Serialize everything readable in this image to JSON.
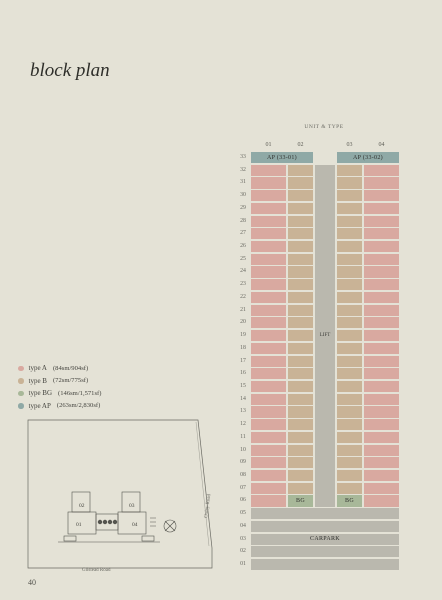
{
  "title": "block plan",
  "page_number": "40",
  "legend": [
    {
      "name": "type A",
      "area": "(84sm/904sf)",
      "color": "#d9a9a0"
    },
    {
      "name": "type B",
      "area": "(72sm/775sf)",
      "color": "#c9b396"
    },
    {
      "name": "type BG",
      "area": "(146sm/1,571sf)",
      "color": "#a8b899"
    },
    {
      "name": "type AP",
      "area": "(263sm/2,830sf)",
      "color": "#8fa9a6"
    }
  ],
  "site_plan": {
    "road_east": "Oxley Road",
    "road_south": "Gilstead Road",
    "units": [
      "01",
      "02",
      "03",
      "04"
    ]
  },
  "chart_data": {
    "type": "table",
    "title": "UNIT & TYPE",
    "columns": [
      "01",
      "02",
      "03",
      "04"
    ],
    "floors": [
      "33",
      "32",
      "31",
      "30",
      "29",
      "28",
      "27",
      "26",
      "25",
      "24",
      "23",
      "22",
      "21",
      "20",
      "19",
      "18",
      "17",
      "16",
      "15",
      "14",
      "13",
      "12",
      "11",
      "10",
      "09",
      "08",
      "07",
      "06",
      "05",
      "04",
      "03",
      "02",
      "01"
    ],
    "penthouse": {
      "floor": "33",
      "cells": [
        "AP (33-01)",
        "AP (33-02)"
      ]
    },
    "typical": {
      "from": "32",
      "to": "07",
      "types": [
        "A",
        "B",
        "B",
        "A"
      ]
    },
    "floor_06": {
      "types": [
        "A",
        "BG",
        "BG",
        "A"
      ],
      "labels": [
        "BG",
        "BG"
      ]
    },
    "lift_label": "LIFT",
    "carpark_label": "CARPARK",
    "carpark_floors": [
      "05",
      "04",
      "03",
      "02",
      "01"
    ]
  }
}
